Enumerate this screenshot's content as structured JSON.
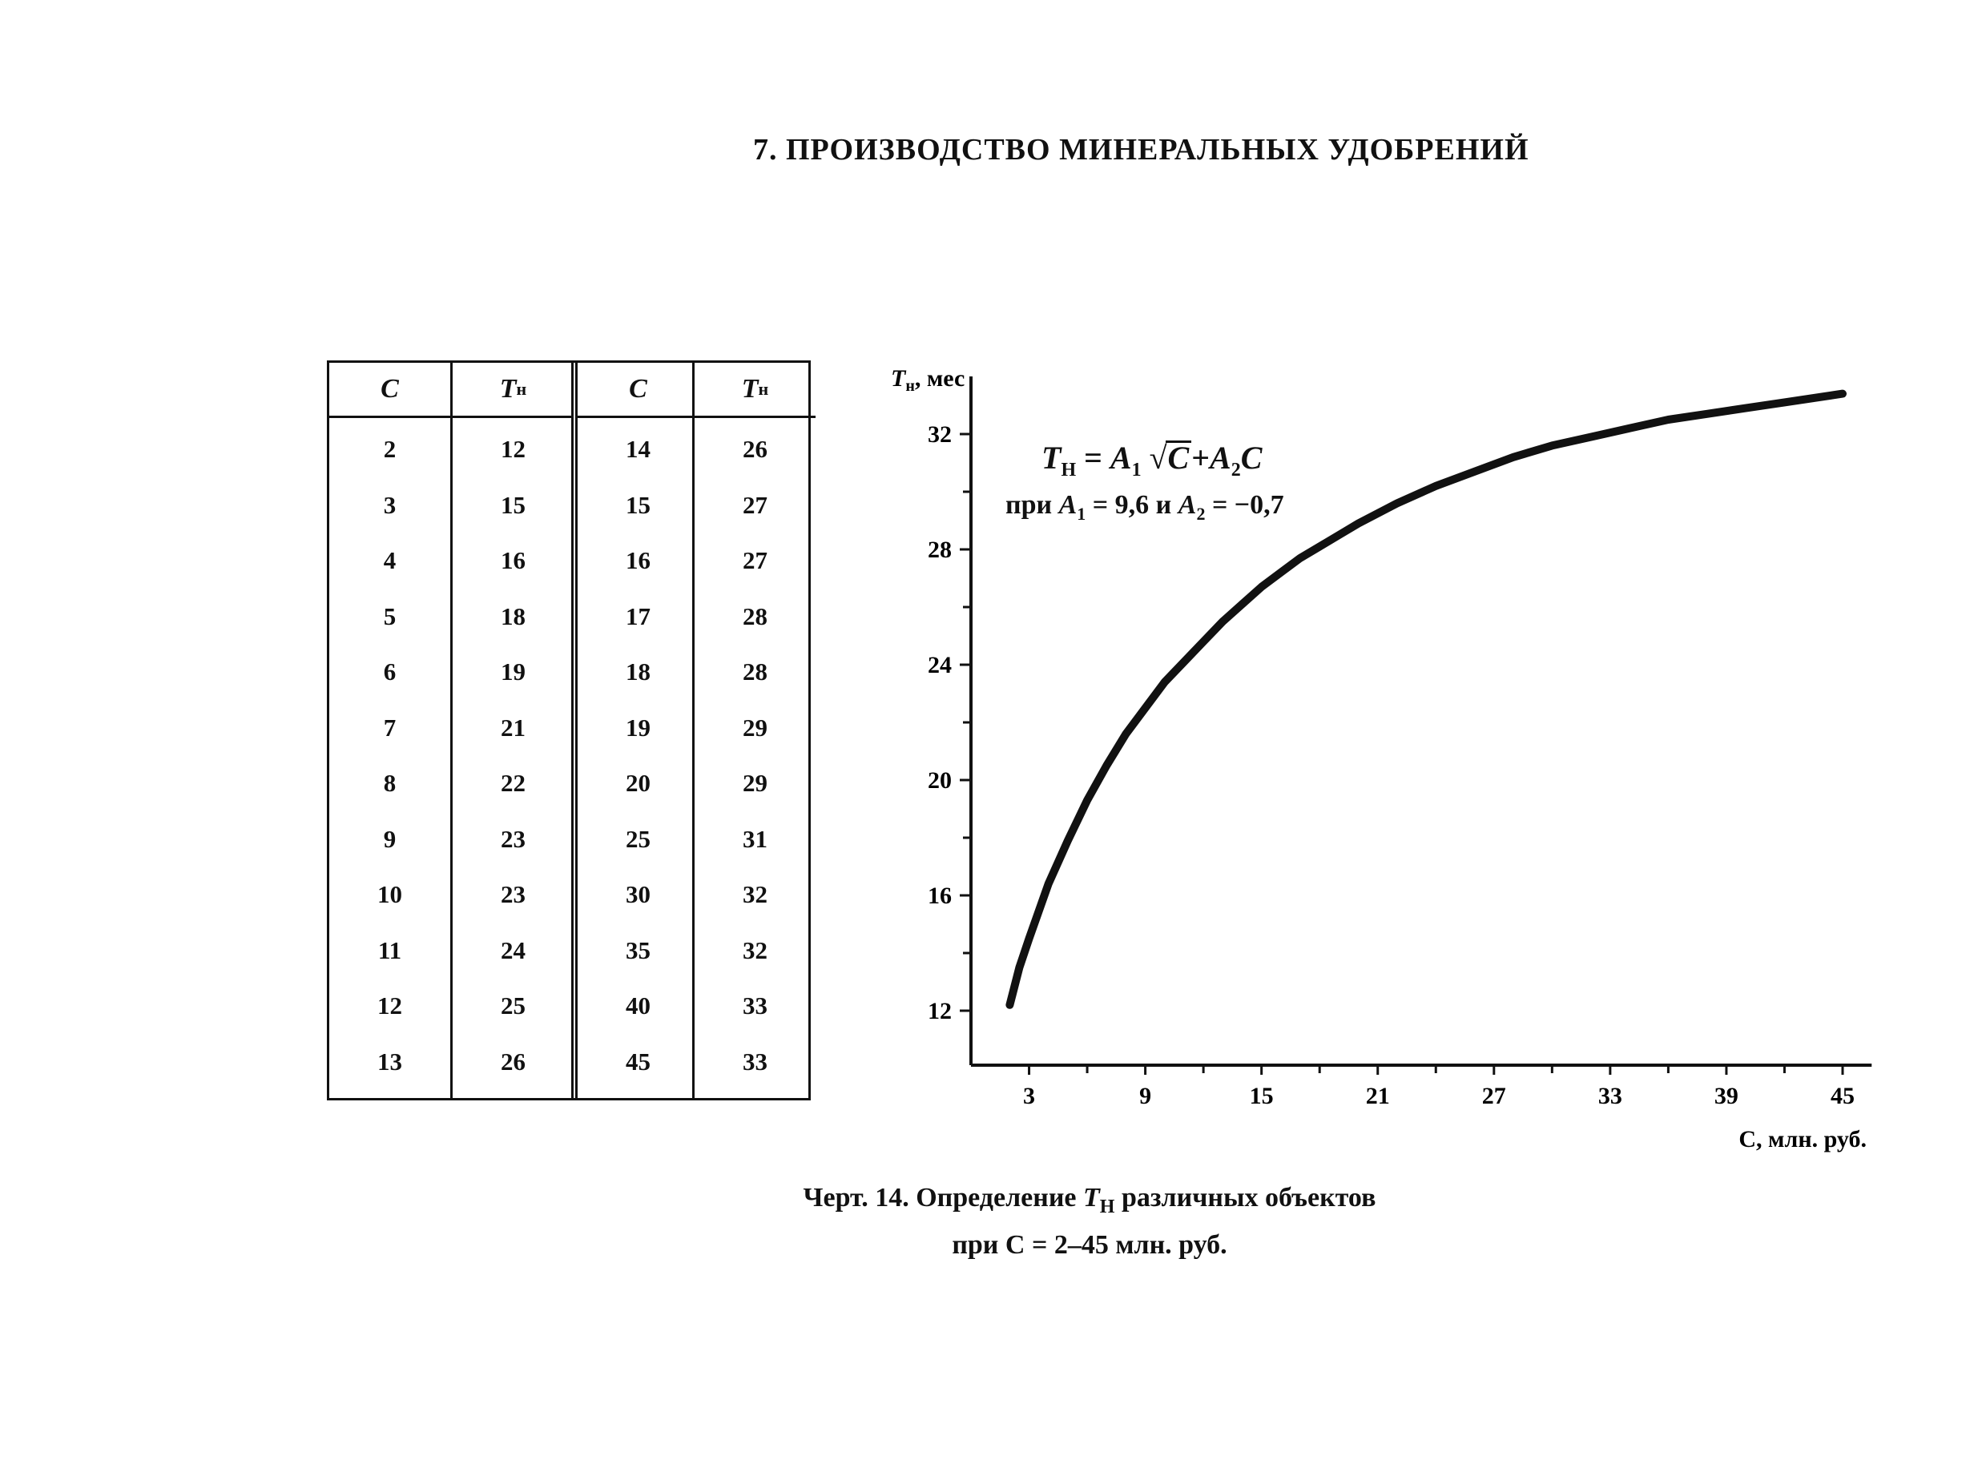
{
  "heading": "7. ПРОИЗВОДСТВО МИНЕРАЛЬНЫХ УДОБРЕНИЙ",
  "table": {
    "headers": [
      {
        "main": "C",
        "sub": ""
      },
      {
        "main": "T",
        "sub": "н"
      },
      {
        "main": "C",
        "sub": ""
      },
      {
        "main": "T",
        "sub": "н"
      }
    ],
    "columns": [
      [
        "2",
        "3",
        "4",
        "5",
        "6",
        "7",
        "8",
        "9",
        "10",
        "11",
        "12",
        "13"
      ],
      [
        "12",
        "15",
        "16",
        "18",
        "19",
        "21",
        "22",
        "23",
        "23",
        "24",
        "25",
        "26"
      ],
      [
        "14",
        "15",
        "16",
        "17",
        "18",
        "19",
        "20",
        "25",
        "30",
        "35",
        "40",
        "45"
      ],
      [
        "26",
        "27",
        "27",
        "28",
        "28",
        "29",
        "29",
        "31",
        "32",
        "32",
        "33",
        "33"
      ]
    ]
  },
  "formula": {
    "lhs_main": "T",
    "lhs_sub": "Н",
    "eq": " = ",
    "a1_main": "A",
    "a1_sub": "1",
    "sqrt_sign": "√",
    "sqrt_arg": "C",
    "plus": "+",
    "a2_main": "A",
    "a2_sub": "2",
    "c": "C",
    "cond_prefix": "при ",
    "cond_a1_main": "A",
    "cond_a1_sub": "1",
    "cond_a1_value": " = 9,6 и ",
    "cond_a2_main": "A",
    "cond_a2_sub": "2",
    "cond_a2_value": " = −0,7"
  },
  "caption": {
    "line1_prefix": "Черт. 14. Определение ",
    "line1_t": "T",
    "line1_sub": "Н",
    "line1_suffix": " различных объектов",
    "line2": "при C = 2–45 млн. руб."
  },
  "chart_data": {
    "type": "line",
    "ylabel_main": "T",
    "ylabel_sub": "н",
    "ylabel_suffix": ", мес",
    "xlabel": "C, млн. руб.",
    "x_ticks": [
      3,
      9,
      15,
      21,
      27,
      33,
      39,
      45
    ],
    "y_ticks": [
      12,
      16,
      20,
      24,
      28,
      32
    ],
    "xlim": [
      0,
      46.5
    ],
    "ylim": [
      10.2,
      34
    ],
    "formula_coefficients": {
      "A1": 9.6,
      "A2": -0.7
    },
    "x": [
      2,
      2.5,
      3,
      4,
      5,
      6,
      7,
      8,
      9,
      10,
      11,
      12,
      13,
      14,
      15,
      16,
      17,
      18,
      19,
      20,
      22,
      24,
      26,
      28,
      30,
      32,
      34,
      36,
      38,
      40,
      42,
      45
    ],
    "y": [
      12.2,
      13.5,
      14.5,
      16.4,
      17.9,
      19.3,
      20.5,
      21.6,
      22.5,
      23.4,
      24.1,
      24.8,
      25.5,
      26.1,
      26.7,
      27.2,
      27.7,
      28.1,
      28.5,
      28.9,
      29.6,
      30.2,
      30.7,
      31.2,
      31.6,
      31.9,
      32.2,
      32.5,
      32.7,
      32.9,
      33.1,
      33.4
    ]
  }
}
